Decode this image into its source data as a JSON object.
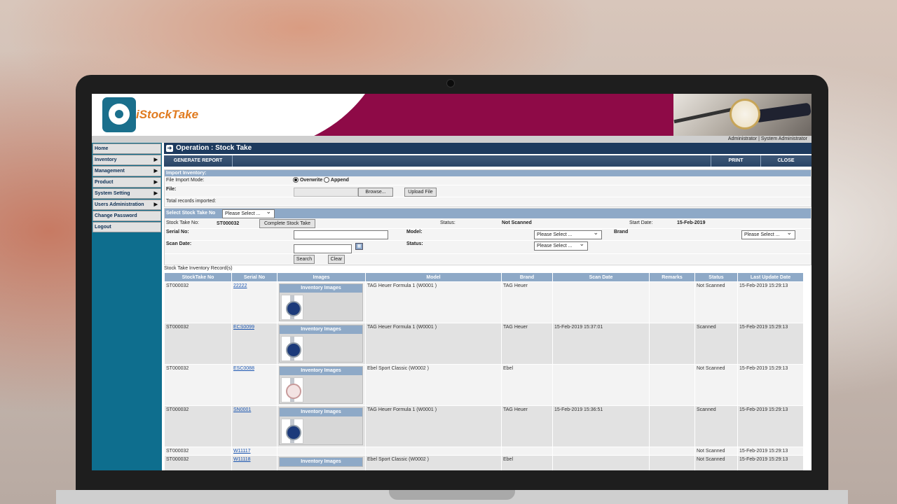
{
  "app": {
    "logo_text": "iStockTake",
    "user_info": "Administrator | System Administrator"
  },
  "sidebar": {
    "items": [
      {
        "label": "Home",
        "arrow": false
      },
      {
        "label": "Inventory",
        "arrow": true
      },
      {
        "label": "Management",
        "arrow": true
      },
      {
        "label": "Product",
        "arrow": true
      },
      {
        "label": "System Setting",
        "arrow": true
      },
      {
        "label": "Users Administration",
        "arrow": true
      },
      {
        "label": "Change Password",
        "arrow": false
      },
      {
        "label": "Logout",
        "arrow": false
      }
    ]
  },
  "page": {
    "title": "Operation : Stock Take"
  },
  "actions": {
    "generate": "GENERATE REPORT",
    "print": "PRINT",
    "close": "CLOSE"
  },
  "import": {
    "header": "Import Inventory:",
    "mode_label": "File Import Mode:",
    "overwrite": "Overwrite",
    "append": "Append",
    "file_label": "File:",
    "browse": "Browse...",
    "upload": "Upload File",
    "total_label": "Total records imported:"
  },
  "stocktake": {
    "select_label": "Select Stock Take No",
    "select_value": "Please Select ...",
    "no_label": "Stock Take No:",
    "no_value": "ST000032",
    "complete_btn": "Complete Stock Take",
    "status_label": "Status:",
    "status_value": "Not Scanned",
    "start_label": "Start Date:",
    "start_value": "15-Feb-2019"
  },
  "filter": {
    "serial_label": "Serial No:",
    "model_label": "Model:",
    "model_value": "Please Select ...",
    "brand_label": "Brand",
    "brand_value": "Please Select ...",
    "scan_label": "Scan Date:",
    "status_label": "Status:",
    "status_value": "Please Select ...",
    "search": "Search",
    "clear": "Clear"
  },
  "records": {
    "caption": "Stock Take Inventory Record(s)",
    "image_caption": "Inventory Images",
    "columns": [
      "StockTake No",
      "Serial No",
      "Images",
      "Model",
      "Brand",
      "Scan Date",
      "Remarks",
      "Status",
      "Last Update Date"
    ],
    "rows": [
      {
        "stocktake": "ST000032",
        "serial": "22222",
        "model": "TAG Heuer Formula 1 (W0001 )",
        "brand": "TAG Heuer",
        "scan": "",
        "remarks": "",
        "status": "Not Scanned",
        "updated": "15-Feb-2019 15:29:13",
        "img": "blue"
      },
      {
        "stocktake": "ST000032",
        "serial": "ECS0099",
        "model": "TAG Heuer Formula 1 (W0001 )",
        "brand": "TAG Heuer",
        "scan": "15-Feb-2019 15:37:01",
        "remarks": "",
        "status": "Scanned",
        "updated": "15-Feb-2019 15:29:13",
        "img": "blue"
      },
      {
        "stocktake": "ST000032",
        "serial": "ESC0088",
        "model": "Ebel Sport Classic (W0002 )",
        "brand": "Ebel",
        "scan": "",
        "remarks": "",
        "status": "Not Scanned",
        "updated": "15-Feb-2019 15:29:13",
        "img": "pink"
      },
      {
        "stocktake": "ST000032",
        "serial": "SN0001",
        "model": "TAG Heuer Formula 1 (W0001 )",
        "brand": "TAG Heuer",
        "scan": "15-Feb-2019 15:36:51",
        "remarks": "",
        "status": "Scanned",
        "updated": "15-Feb-2019 15:29:13",
        "img": "blue"
      },
      {
        "stocktake": "ST000032",
        "serial": "W11117",
        "model": "",
        "brand": "",
        "scan": "",
        "remarks": "",
        "status": "Not Scanned",
        "updated": "15-Feb-2019 15:29:13",
        "img": ""
      },
      {
        "stocktake": "ST000032",
        "serial": "W11118",
        "model": "Ebel Sport Classic (W0002 )",
        "brand": "Ebel",
        "scan": "",
        "remarks": "",
        "status": "Not Scanned",
        "updated": "15-Feb-2019 15:29:13",
        "img": "partial"
      }
    ]
  }
}
